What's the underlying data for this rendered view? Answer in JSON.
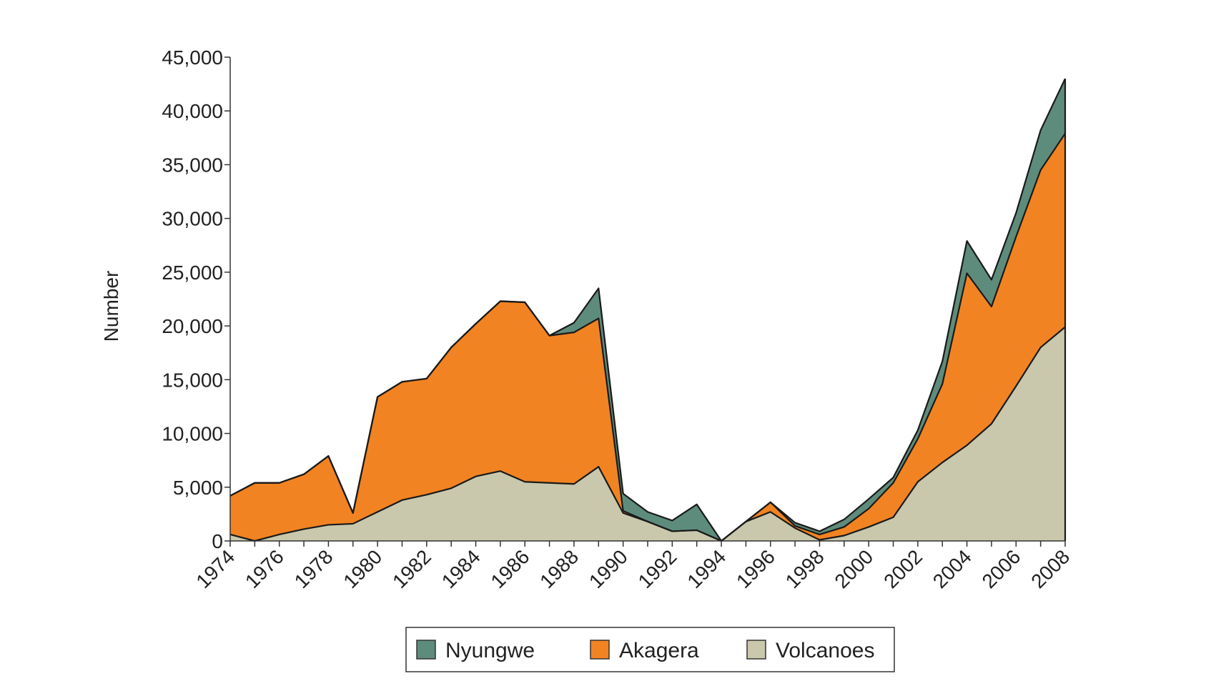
{
  "chart_data": {
    "type": "area",
    "stacked": true,
    "title": "",
    "xlabel": "",
    "ylabel": "Number",
    "ylim": [
      0,
      45000
    ],
    "yticks": [
      0,
      5000,
      10000,
      15000,
      20000,
      25000,
      30000,
      35000,
      40000,
      45000
    ],
    "ytick_labels": [
      "0",
      "5,000",
      "10,000",
      "15,000",
      "20,000",
      "25,000",
      "30,000",
      "35,000",
      "40,000",
      "45,000"
    ],
    "x": [
      1974,
      1975,
      1976,
      1977,
      1978,
      1979,
      1980,
      1981,
      1982,
      1983,
      1984,
      1985,
      1986,
      1987,
      1988,
      1989,
      1990,
      1991,
      1992,
      1993,
      1994,
      1995,
      1996,
      1997,
      1998,
      1999,
      2000,
      2001,
      2002,
      2003,
      2004,
      2005,
      2006,
      2007,
      2008
    ],
    "xlim": [
      1974,
      2008
    ],
    "xtick_labels": [
      "1974",
      "1976",
      "1978",
      "1980",
      "1982",
      "1984",
      "1986",
      "1988",
      "1990",
      "1992",
      "1994",
      "1996",
      "1998",
      "2000",
      "2002",
      "2004",
      "2006",
      "2008"
    ],
    "grid": false,
    "legend_position": "bottom-center",
    "series": [
      {
        "name": "Volcanoes",
        "color": "#c9c8ac",
        "values": [
          600,
          0,
          600,
          1100,
          1500,
          1600,
          2700,
          3800,
          4300,
          4900,
          6000,
          6500,
          5500,
          5400,
          5300,
          6900,
          2600,
          1800,
          900,
          1000,
          0,
          1800,
          2700,
          1200,
          100,
          500,
          1300,
          2200,
          5500,
          7300,
          8900,
          10900,
          14400,
          18000,
          19900
        ]
      },
      {
        "name": "Akagera",
        "color": "#f28322",
        "values": [
          3600,
          5400,
          4800,
          5100,
          6400,
          1000,
          10700,
          11000,
          10800,
          13100,
          14200,
          15800,
          16700,
          13700,
          14100,
          13800,
          200,
          0,
          0,
          0,
          0,
          0,
          900,
          200,
          500,
          800,
          1700,
          3200,
          4000,
          7300,
          16000,
          10900,
          13900,
          16500,
          18000
        ]
      },
      {
        "name": "Nyungwe",
        "color": "#5e8c7c",
        "values": [
          0,
          0,
          0,
          0,
          0,
          0,
          0,
          0,
          0,
          0,
          0,
          0,
          0,
          0,
          900,
          2800,
          1600,
          900,
          1000,
          2400,
          0,
          0,
          0,
          300,
          300,
          700,
          900,
          500,
          800,
          2100,
          3000,
          2500,
          2200,
          3700,
          5100
        ]
      }
    ],
    "legend": [
      "Nyungwe",
      "Akagera",
      "Volcanoes"
    ]
  },
  "legend_order": [
    "Nyungwe",
    "Akagera",
    "Volcanoes"
  ],
  "style": {
    "outline_color": "#1a1a1a",
    "axis_color": "#333333"
  }
}
